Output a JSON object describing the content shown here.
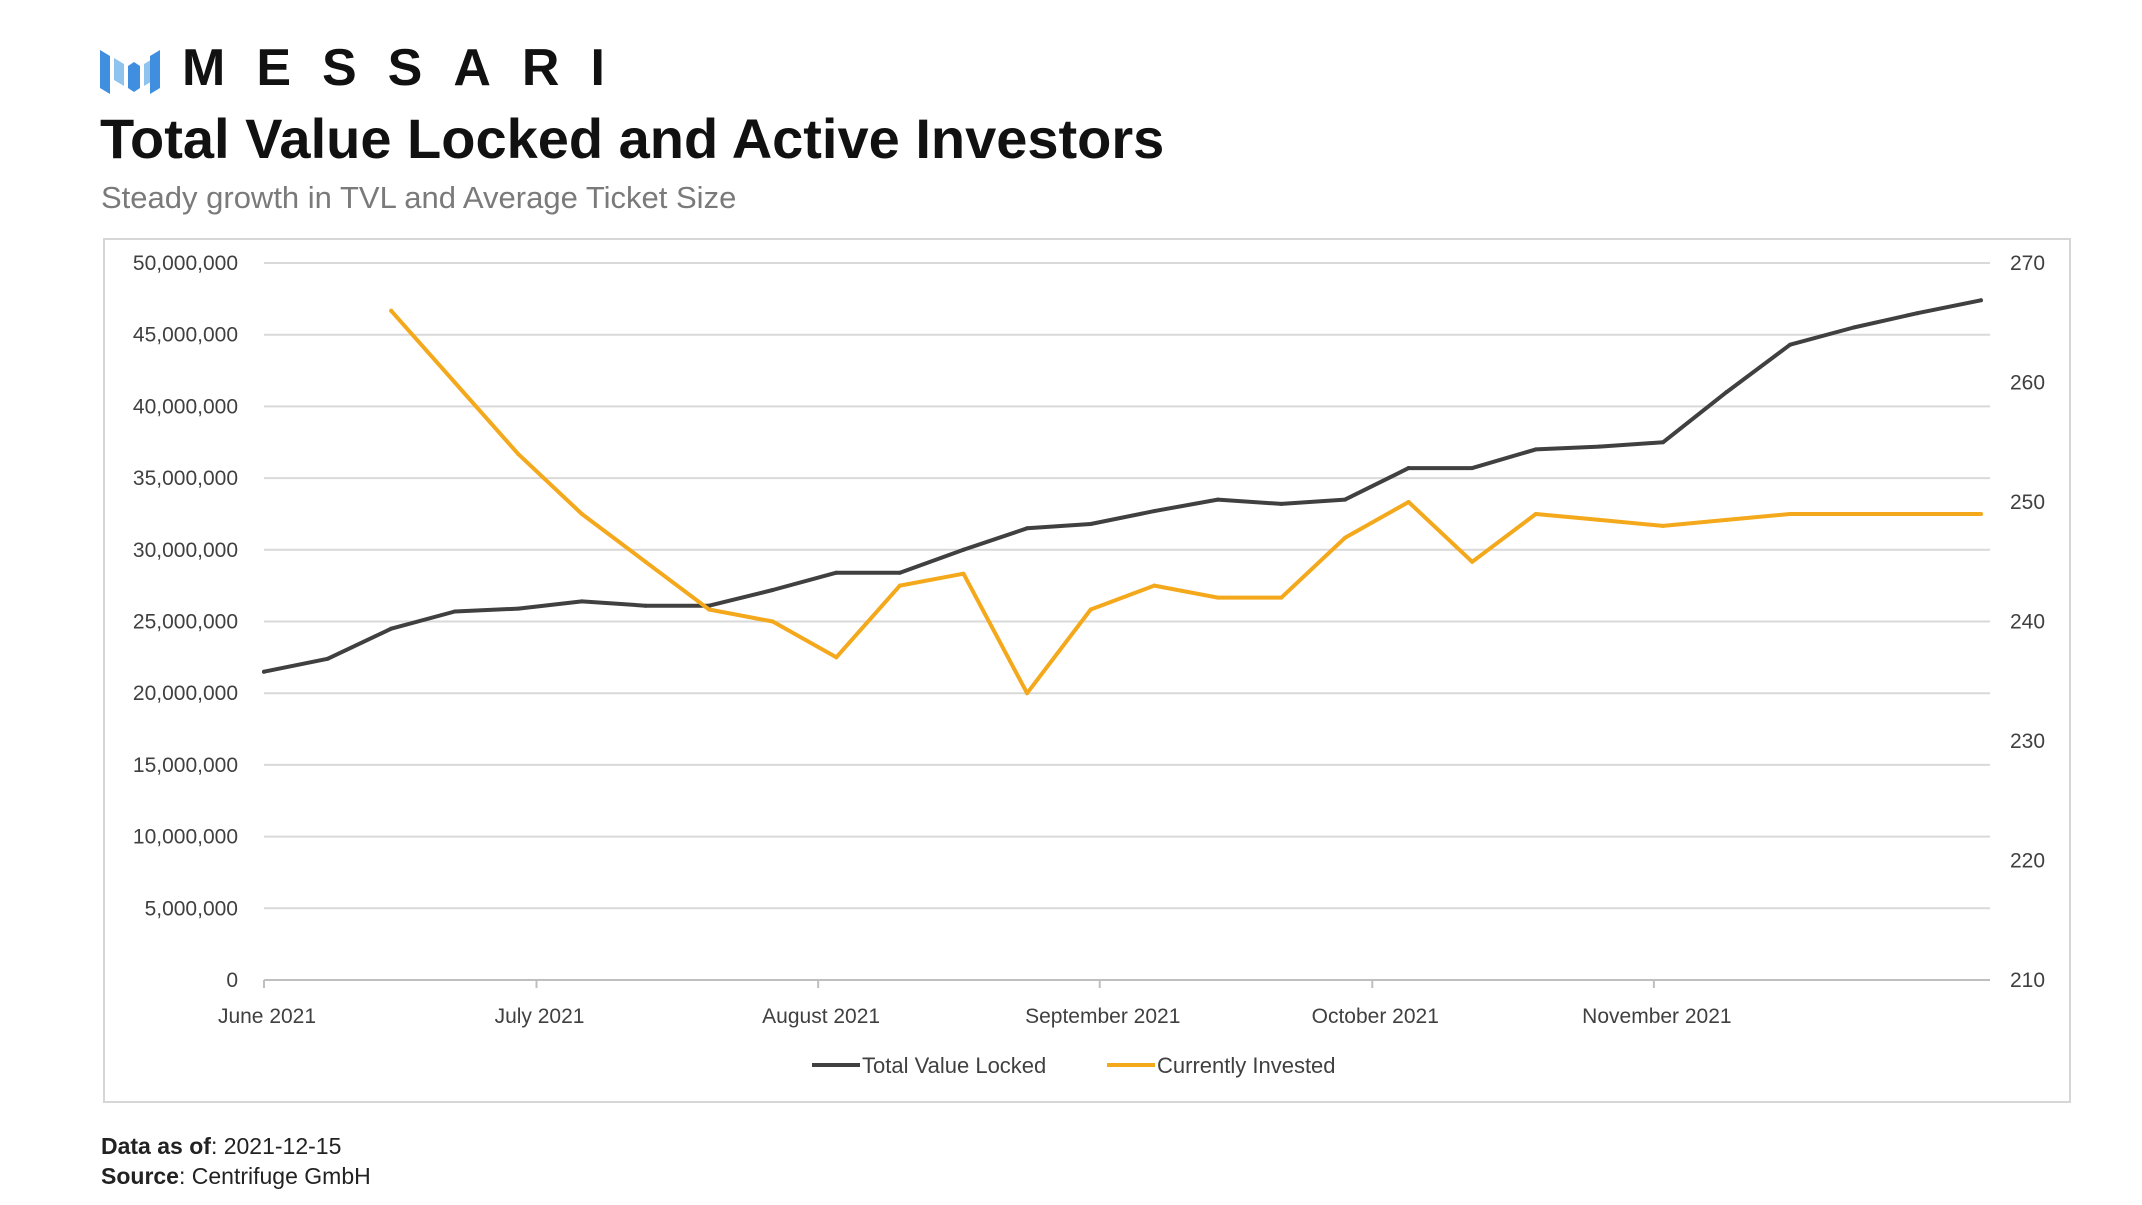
{
  "brand": {
    "name": "MESSARI",
    "logo_icon": "messari-logo-icon",
    "logo_colors": [
      "#3f8ee0",
      "#8fc4ef"
    ]
  },
  "title": "Total Value Locked and Active Investors",
  "subtitle": "Steady growth in TVL and Average Ticket Size",
  "footer": {
    "data_as_of_label": "Data as of",
    "data_as_of_value": ": 2021-12-15",
    "source_label": "Source",
    "source_value": ": Centrifuge GmbH"
  },
  "chart_data": {
    "type": "line",
    "title": "",
    "xlabel": "",
    "ylabel": "",
    "grid": true,
    "legend_position": "bottom-center",
    "x_start": "2021-06-01",
    "x_end": "2021-12-08",
    "x_ticks": [
      {
        "date": "2021-06-01",
        "label": "June 2021"
      },
      {
        "date": "2021-07-01",
        "label": "July 2021"
      },
      {
        "date": "2021-08-01",
        "label": "August 2021"
      },
      {
        "date": "2021-09-01",
        "label": "September 2021"
      },
      {
        "date": "2021-10-01",
        "label": "October 2021"
      },
      {
        "date": "2021-11-01",
        "label": "November 2021"
      }
    ],
    "y_left": {
      "ylim": [
        0,
        50000000
      ],
      "ticks": [
        0,
        5000000,
        10000000,
        15000000,
        20000000,
        25000000,
        30000000,
        35000000,
        40000000,
        45000000,
        50000000
      ],
      "tick_labels": [
        "0",
        "5,000,000",
        "10,000,000",
        "15,000,000",
        "20,000,000",
        "25,000,000",
        "30,000,000",
        "35,000,000",
        "40,000,000",
        "45,000,000",
        "50,000,000"
      ]
    },
    "y_right": {
      "ylim": [
        210,
        270
      ],
      "ticks": [
        210,
        220,
        230,
        240,
        250,
        260,
        270
      ],
      "tick_labels": [
        "210",
        "220",
        "230",
        "240",
        "250",
        "260",
        "270"
      ]
    },
    "series": [
      {
        "name": "Total Value Locked",
        "axis": "left",
        "color": "#404040",
        "points": [
          [
            "2021-06-01",
            21500000
          ],
          [
            "2021-06-08",
            22400000
          ],
          [
            "2021-06-15",
            24500000
          ],
          [
            "2021-06-22",
            25700000
          ],
          [
            "2021-06-29",
            25900000
          ],
          [
            "2021-07-06",
            26400000
          ],
          [
            "2021-07-13",
            26100000
          ],
          [
            "2021-07-20",
            26100000
          ],
          [
            "2021-07-27",
            27200000
          ],
          [
            "2021-08-03",
            28400000
          ],
          [
            "2021-08-10",
            28400000
          ],
          [
            "2021-08-17",
            30000000
          ],
          [
            "2021-08-24",
            31500000
          ],
          [
            "2021-08-31",
            31800000
          ],
          [
            "2021-09-07",
            32700000
          ],
          [
            "2021-09-14",
            33500000
          ],
          [
            "2021-09-21",
            33200000
          ],
          [
            "2021-09-28",
            33500000
          ],
          [
            "2021-10-05",
            35700000
          ],
          [
            "2021-10-12",
            35700000
          ],
          [
            "2021-10-19",
            37000000
          ],
          [
            "2021-10-26",
            37200000
          ],
          [
            "2021-11-02",
            37500000
          ],
          [
            "2021-11-09",
            41000000
          ],
          [
            "2021-11-16",
            44300000
          ],
          [
            "2021-11-23",
            45500000
          ],
          [
            "2021-11-30",
            46500000
          ],
          [
            "2021-12-07",
            47400000
          ]
        ]
      },
      {
        "name": "Currently Invested",
        "axis": "right",
        "color": "#f4a81c",
        "points": [
          [
            "2021-06-15",
            266
          ],
          [
            "2021-06-22",
            260
          ],
          [
            "2021-06-29",
            254
          ],
          [
            "2021-07-06",
            249
          ],
          [
            "2021-07-13",
            245
          ],
          [
            "2021-07-20",
            241
          ],
          [
            "2021-07-27",
            240
          ],
          [
            "2021-08-03",
            237
          ],
          [
            "2021-08-10",
            243
          ],
          [
            "2021-08-17",
            244
          ],
          [
            "2021-08-24",
            234
          ],
          [
            "2021-08-31",
            241
          ],
          [
            "2021-09-07",
            243
          ],
          [
            "2021-09-14",
            242
          ],
          [
            "2021-09-21",
            242
          ],
          [
            "2021-09-28",
            247
          ],
          [
            "2021-10-05",
            250
          ],
          [
            "2021-10-12",
            245
          ],
          [
            "2021-10-19",
            249
          ],
          [
            "2021-10-26",
            248.5
          ],
          [
            "2021-11-02",
            248
          ],
          [
            "2021-11-09",
            248.5
          ],
          [
            "2021-11-16",
            249
          ],
          [
            "2021-11-23",
            249
          ],
          [
            "2021-11-30",
            249
          ],
          [
            "2021-12-07",
            249
          ]
        ]
      }
    ]
  }
}
